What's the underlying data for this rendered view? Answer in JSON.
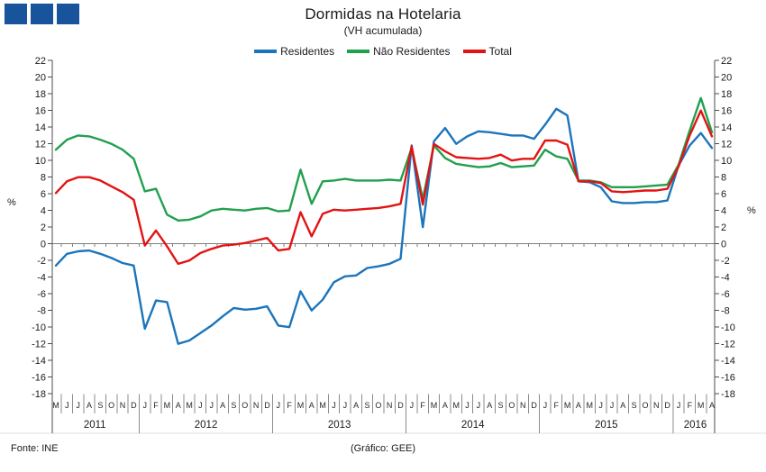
{
  "logo": {
    "square_color": "#17549B"
  },
  "title": "Dormidas na Hotelaria",
  "subtitle": "(VH acumulada)",
  "legend": {
    "items": [
      {
        "label": "Residentes",
        "color": "#1B75BC"
      },
      {
        "label": "Não Residentes",
        "color": "#21A04E"
      },
      {
        "label": "Total",
        "color": "#E21313"
      }
    ]
  },
  "footer": {
    "source": "Fonte: INE",
    "credit": "(Gráfico: GEE)"
  },
  "chart_data": {
    "type": "line",
    "title": "Dormidas na Hotelaria",
    "subtitle": "(VH acumulada)",
    "ylabel": "%",
    "y_axis": {
      "min": -18,
      "max": 22,
      "step": 2,
      "unit": "%"
    },
    "grid": "zero-line-only",
    "legend_position": "top",
    "years": [
      {
        "label": "2011",
        "months": [
          "M",
          "J",
          "J",
          "A",
          "S",
          "O",
          "N",
          "D"
        ]
      },
      {
        "label": "2012",
        "months": [
          "J",
          "F",
          "M",
          "A",
          "M",
          "J",
          "J",
          "A",
          "S",
          "O",
          "N",
          "D"
        ]
      },
      {
        "label": "2013",
        "months": [
          "J",
          "F",
          "M",
          "A",
          "M",
          "J",
          "J",
          "A",
          "S",
          "O",
          "N",
          "D"
        ]
      },
      {
        "label": "2014",
        "months": [
          "J",
          "F",
          "M",
          "A",
          "M",
          "J",
          "J",
          "A",
          "S",
          "O",
          "N",
          "D"
        ]
      },
      {
        "label": "2015",
        "months": [
          "J",
          "F",
          "M",
          "A",
          "M",
          "J",
          "J",
          "A",
          "S",
          "O",
          "N",
          "D"
        ]
      },
      {
        "label": "2016",
        "months": [
          "J",
          "F",
          "M",
          "A"
        ]
      }
    ],
    "series": [
      {
        "name": "Residentes",
        "color": "#1B75BC",
        "values": [
          -2.6,
          -1.2,
          -0.9,
          -0.8,
          -1.2,
          -1.7,
          -2.3,
          -2.6,
          -10.2,
          -6.8,
          -7.0,
          -12.0,
          -11.6,
          -10.7,
          -9.8,
          -8.7,
          -7.7,
          -7.9,
          -7.8,
          -7.5,
          -9.8,
          -10.0,
          -5.7,
          -8.0,
          -6.7,
          -4.6,
          -3.9,
          -3.8,
          -2.9,
          -2.7,
          -2.4,
          -1.8,
          11.8,
          2.0,
          12.3,
          13.9,
          12.0,
          12.9,
          13.5,
          13.4,
          13.2,
          13.0,
          13.0,
          12.6,
          14.3,
          16.2,
          15.4,
          7.5,
          7.4,
          6.8,
          5.1,
          4.9,
          4.9,
          5.0,
          5.0,
          5.2,
          9.4,
          11.8,
          13.3,
          11.5
        ]
      },
      {
        "name": "Não Residentes",
        "color": "#21A04E",
        "values": [
          11.3,
          12.5,
          13.0,
          12.9,
          12.5,
          12.0,
          11.3,
          10.2,
          6.3,
          6.6,
          3.5,
          2.8,
          2.9,
          3.3,
          4.0,
          4.2,
          4.1,
          4.0,
          4.2,
          4.3,
          3.9,
          4.0,
          8.9,
          4.8,
          7.5,
          7.6,
          7.8,
          7.6,
          7.6,
          7.6,
          7.7,
          7.6,
          11.5,
          5.4,
          11.8,
          10.3,
          9.6,
          9.4,
          9.2,
          9.3,
          9.7,
          9.2,
          9.3,
          9.4,
          11.3,
          10.5,
          10.2,
          7.6,
          7.6,
          7.4,
          6.8,
          6.8,
          6.8,
          6.9,
          7.0,
          7.1,
          9.5,
          13.6,
          17.5,
          13.4
        ]
      },
      {
        "name": "Total",
        "color": "#E21313",
        "values": [
          6.1,
          7.5,
          8.0,
          8.0,
          7.6,
          6.9,
          6.2,
          5.3,
          -0.2,
          1.6,
          -0.3,
          -2.4,
          -2.0,
          -1.1,
          -0.6,
          -0.2,
          -0.1,
          0.1,
          0.4,
          0.7,
          -0.8,
          -0.6,
          3.8,
          0.9,
          3.6,
          4.1,
          4.0,
          4.1,
          4.2,
          4.3,
          4.5,
          4.8,
          11.7,
          4.7,
          12.0,
          11.1,
          10.4,
          10.3,
          10.2,
          10.3,
          10.7,
          10.0,
          10.2,
          10.2,
          12.4,
          12.4,
          11.9,
          7.5,
          7.5,
          7.3,
          6.3,
          6.2,
          6.3,
          6.4,
          6.4,
          6.6,
          9.3,
          13.0,
          16.0,
          12.9
        ]
      }
    ]
  }
}
